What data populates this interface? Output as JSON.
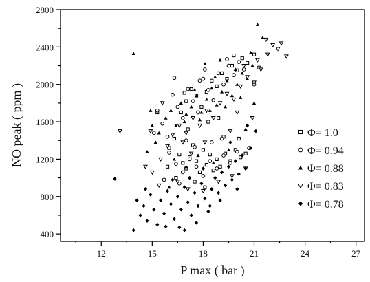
{
  "chart_data": {
    "type": "scatter",
    "xlabel": "P max ( bar )",
    "ylabel": "NO peak ( ppm )",
    "xlim": [
      9.6,
      27.5
    ],
    "ylim": [
      320,
      2800
    ],
    "xticks": [
      "12",
      "15",
      "18",
      "21",
      "24",
      "27"
    ],
    "yticks": [
      "400",
      "800",
      "1200",
      "1600",
      "2000",
      "2400",
      "2800"
    ],
    "legend_position": "center-right",
    "series": [
      {
        "name": "Φ= 1.0",
        "marker": "square-open",
        "points": [
          [
            16.0,
            1320
          ],
          [
            16.3,
            1420
          ],
          [
            16.6,
            1250
          ],
          [
            16.8,
            1160
          ],
          [
            17.0,
            1100
          ],
          [
            17.2,
            1220
          ],
          [
            17.4,
            1350
          ],
          [
            17.6,
            1180
          ],
          [
            17.8,
            1060
          ],
          [
            18.0,
            1300
          ],
          [
            18.2,
            1140
          ],
          [
            18.4,
            1250
          ],
          [
            18.6,
            1080
          ],
          [
            18.8,
            1200
          ],
          [
            19.0,
            1120
          ],
          [
            19.3,
            1260
          ],
          [
            19.6,
            1180
          ],
          [
            19.9,
            1300
          ],
          [
            20.2,
            1220
          ],
          [
            20.5,
            1260
          ],
          [
            16.7,
            1700
          ],
          [
            17.0,
            1820
          ],
          [
            17.3,
            1950
          ],
          [
            17.6,
            1880
          ],
          [
            17.9,
            1760
          ],
          [
            18.2,
            1920
          ],
          [
            18.5,
            2040
          ],
          [
            18.8,
            1980
          ],
          [
            19.1,
            2120
          ],
          [
            19.4,
            2060
          ],
          [
            19.7,
            2200
          ],
          [
            20.0,
            2150
          ],
          [
            20.3,
            2280
          ],
          [
            20.6,
            2230
          ],
          [
            21.0,
            2320
          ],
          [
            19.8,
            2310
          ],
          [
            18.3,
            1600
          ],
          [
            17.1,
            1520
          ],
          [
            18.9,
            1640
          ],
          [
            15.3,
            1700
          ],
          [
            16.9,
            1910
          ],
          [
            21.3,
            2180
          ],
          [
            20.1,
            1420
          ],
          [
            19.2,
            1440
          ],
          [
            16.4,
            1000
          ],
          [
            17.5,
            960
          ],
          [
            18.1,
            900
          ],
          [
            15.9,
            1120
          ]
        ]
      },
      {
        "name": "Φ= 0.94",
        "marker": "circle-open",
        "points": [
          [
            15.3,
            1720
          ],
          [
            15.6,
            1580
          ],
          [
            15.9,
            1440
          ],
          [
            16.2,
            1890
          ],
          [
            16.5,
            1760
          ],
          [
            16.8,
            1640
          ],
          [
            17.1,
            1950
          ],
          [
            17.4,
            1820
          ],
          [
            17.7,
            1700
          ],
          [
            18.0,
            2060
          ],
          [
            18.3,
            1940
          ],
          [
            18.6,
            1830
          ],
          [
            18.9,
            2120
          ],
          [
            19.2,
            2000
          ],
          [
            19.5,
            2200
          ],
          [
            19.8,
            2100
          ],
          [
            20.1,
            2240
          ],
          [
            20.4,
            2160
          ],
          [
            19.4,
            2270
          ],
          [
            17.8,
            2040
          ],
          [
            18.1,
            2160
          ],
          [
            16.3,
            2070
          ],
          [
            16.0,
            1270
          ],
          [
            16.4,
            1150
          ],
          [
            16.8,
            1060
          ],
          [
            17.2,
            1200
          ],
          [
            17.6,
            1120
          ],
          [
            18.0,
            1020
          ],
          [
            18.4,
            1180
          ],
          [
            18.8,
            1100
          ],
          [
            19.2,
            1240
          ],
          [
            19.6,
            1160
          ],
          [
            20.0,
            1280
          ],
          [
            17.0,
            1400
          ],
          [
            17.5,
            1330
          ],
          [
            18.5,
            1380
          ],
          [
            19.1,
            1420
          ],
          [
            15.7,
            980
          ],
          [
            16.6,
            940
          ],
          [
            20.7,
            1320
          ],
          [
            21.0,
            2000
          ],
          [
            15.1,
            1480
          ]
        ]
      },
      {
        "name": "Φ= 0.88",
        "marker": "triangle-filled",
        "points": [
          [
            13.9,
            2330
          ],
          [
            15.0,
            1560
          ],
          [
            15.4,
            1480
          ],
          [
            15.8,
            1640
          ],
          [
            16.1,
            1720
          ],
          [
            16.4,
            1560
          ],
          [
            16.7,
            1800
          ],
          [
            17.0,
            1680
          ],
          [
            17.3,
            1760
          ],
          [
            17.6,
            1880
          ],
          [
            17.9,
            1700
          ],
          [
            18.2,
            1840
          ],
          [
            18.5,
            1960
          ],
          [
            18.8,
            1780
          ],
          [
            19.1,
            1920
          ],
          [
            19.4,
            2040
          ],
          [
            19.7,
            1880
          ],
          [
            20.0,
            2000
          ],
          [
            20.3,
            2120
          ],
          [
            20.6,
            2060
          ],
          [
            20.9,
            2200
          ],
          [
            21.2,
            2640
          ],
          [
            21.5,
            2500
          ],
          [
            20.8,
            2340
          ],
          [
            19.9,
            2160
          ],
          [
            18.7,
            2080
          ],
          [
            17.5,
            1940
          ],
          [
            16.9,
            1600
          ],
          [
            17.8,
            1620
          ],
          [
            18.4,
            1720
          ],
          [
            19.3,
            1760
          ],
          [
            20.2,
            1860
          ],
          [
            16.3,
            1200
          ],
          [
            17.0,
            1120
          ],
          [
            17.7,
            1240
          ],
          [
            18.6,
            1160
          ],
          [
            19.5,
            1300
          ],
          [
            15.2,
            1380
          ],
          [
            14.7,
            1280
          ],
          [
            20.5,
            1520
          ],
          [
            21.0,
            1800
          ],
          [
            18.1,
            2220
          ],
          [
            19.0,
            2260
          ],
          [
            16.0,
            900
          ],
          [
            14.9,
            1720
          ]
        ]
      },
      {
        "name": "Φ= 0.83",
        "marker": "triangle-down-open",
        "points": [
          [
            13.1,
            1500
          ],
          [
            14.6,
            1120
          ],
          [
            15.0,
            1060
          ],
          [
            15.5,
            1200
          ],
          [
            15.9,
            1340
          ],
          [
            16.2,
            1460
          ],
          [
            16.6,
            1560
          ],
          [
            17.0,
            1480
          ],
          [
            17.4,
            1640
          ],
          [
            17.8,
            1560
          ],
          [
            18.2,
            1720
          ],
          [
            18.6,
            1640
          ],
          [
            19.0,
            1800
          ],
          [
            19.4,
            1900
          ],
          [
            19.8,
            1840
          ],
          [
            20.2,
            1980
          ],
          [
            20.6,
            2080
          ],
          [
            21.0,
            2020
          ],
          [
            21.4,
            2160
          ],
          [
            21.8,
            2320
          ],
          [
            22.1,
            2420
          ],
          [
            22.4,
            2380
          ],
          [
            22.6,
            2440
          ],
          [
            22.9,
            2300
          ],
          [
            21.7,
            2480
          ],
          [
            21.2,
            2260
          ],
          [
            20.4,
            2200
          ],
          [
            16.8,
            1380
          ],
          [
            17.3,
            1260
          ],
          [
            18.1,
            1380
          ],
          [
            19.6,
            1500
          ],
          [
            20.9,
            1640
          ],
          [
            15.6,
            1800
          ],
          [
            14.9,
            1500
          ],
          [
            16.5,
            960
          ],
          [
            17.1,
            880
          ],
          [
            18.0,
            860
          ],
          [
            18.9,
            960
          ],
          [
            19.7,
            1020
          ],
          [
            20.5,
            1100
          ],
          [
            15.4,
            920
          ],
          [
            20.0,
            1700
          ]
        ]
      },
      {
        "name": "Φ= 0.78",
        "marker": "diamond-filled",
        "points": [
          [
            12.8,
            990
          ],
          [
            13.9,
            440
          ],
          [
            14.1,
            760
          ],
          [
            14.3,
            600
          ],
          [
            14.5,
            700
          ],
          [
            14.7,
            540
          ],
          [
            14.9,
            820
          ],
          [
            15.1,
            660
          ],
          [
            15.3,
            500
          ],
          [
            15.5,
            760
          ],
          [
            15.7,
            620
          ],
          [
            15.9,
            860
          ],
          [
            16.1,
            720
          ],
          [
            16.3,
            560
          ],
          [
            16.5,
            800
          ],
          [
            16.7,
            660
          ],
          [
            16.9,
            900
          ],
          [
            17.1,
            740
          ],
          [
            17.3,
            600
          ],
          [
            17.5,
            840
          ],
          [
            17.7,
            700
          ],
          [
            17.9,
            940
          ],
          [
            18.1,
            780
          ],
          [
            18.3,
            640
          ],
          [
            18.5,
            880
          ],
          [
            18.7,
            1000
          ],
          [
            18.9,
            840
          ],
          [
            19.1,
            1060
          ],
          [
            19.3,
            920
          ],
          [
            19.5,
            1120
          ],
          [
            19.7,
            980
          ],
          [
            19.9,
            1180
          ],
          [
            20.1,
            1040
          ],
          [
            20.3,
            1240
          ],
          [
            20.5,
            1100
          ],
          [
            20.8,
            1320
          ],
          [
            21.1,
            1500
          ],
          [
            17.6,
            520
          ],
          [
            16.9,
            440
          ],
          [
            16.6,
            470
          ],
          [
            15.8,
            480
          ],
          [
            18.4,
            700
          ],
          [
            19.0,
            760
          ],
          [
            20.0,
            880
          ],
          [
            17.2,
            1000
          ],
          [
            18.0,
            1100
          ],
          [
            19.6,
            1380
          ],
          [
            20.6,
            1560
          ],
          [
            14.6,
            880
          ],
          [
            16.2,
            980
          ]
        ]
      }
    ]
  }
}
